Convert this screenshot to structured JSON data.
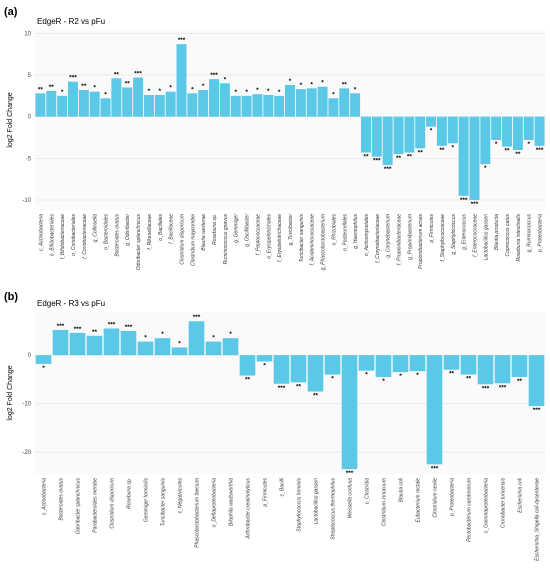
{
  "chart_data": [
    {
      "type": "bar",
      "panel": "(a)",
      "title": "EdgeR - R2 vs pFu",
      "y_label": "log2 Fold Change",
      "color": "#5bc8e8",
      "grid": true,
      "ylim": [
        -11.2,
        10.4
      ],
      "yticks": [
        -10,
        -5,
        0,
        5,
        10
      ],
      "categories": [
        "c_Actinobacteria",
        "o_Bifidobacteriales",
        "f_Bifidobacteriaceae",
        "o_Coriobacteriales",
        "f_Coriobacteriaceae",
        "g_Collinsella",
        "o_Bacteroidales",
        "Bacteroides ovatus",
        "g_Odoribacter",
        "Odoribacter splanchnicus",
        "f_Rikenellaceae",
        "o_Bacillales",
        "f_Bacillaceae",
        "Clostridium disporicum",
        "Clostridium maycombei",
        "Blautia wexlerae",
        "Roseburia sp.",
        "Ruminococcus gnavus",
        "g_Gemmiger",
        "g_Oscillibacter",
        "f_Peptococcaceae",
        "o_Erysipelotrichales",
        "f_Erysipelotrichaceae",
        "g_Turicibacter",
        "Turicibacter sanguinis",
        "f_Acidaminococcaceae",
        "g_Phascolarctobacterium",
        "o_Rhizobiales",
        "o_Pasteurellales",
        "g_Haemophilus",
        "o_Actinomycetales",
        "f_Corynebacteriaceae",
        "g_Corynebacterium",
        "f_Propionibacteriaceae",
        "g_Propionibacterium",
        "Propionibacterium acnes",
        "p_Firmicutes",
        "f_Staphylococcaceae",
        "g_Staphylococcus",
        "g_Enterococcus",
        "f_Enterococcaceae",
        "Lactobacillus gasseri",
        "Blautia producta",
        "Coprococcus catus",
        "Roseburia intestinalis",
        "g_Ruminococcus",
        "p_Proteobacteria"
      ],
      "values": [
        2.8,
        3.1,
        2.5,
        4.2,
        3.2,
        3.0,
        2.2,
        4.6,
        3.5,
        4.7,
        2.6,
        2.6,
        3.0,
        8.7,
        2.8,
        3.2,
        4.5,
        4.0,
        2.5,
        2.5,
        2.7,
        2.6,
        2.5,
        3.8,
        3.3,
        3.4,
        3.6,
        2.2,
        3.4,
        2.8,
        -4.3,
        -4.8,
        -5.8,
        -4.5,
        -4.3,
        -3.8,
        -1.2,
        -3.5,
        -3.2,
        -9.5,
        -10.0,
        -5.7,
        -2.8,
        -3.6,
        -4.0,
        -2.8,
        -3.5
      ],
      "significance": [
        "**",
        "**",
        "*",
        "***",
        "**",
        "*",
        "*",
        "**",
        "**",
        "***",
        "*",
        "*",
        "*",
        "***",
        "*",
        "*",
        "***",
        "*",
        "*",
        "*",
        "*",
        "*",
        "*",
        "*",
        "*",
        "*",
        "*",
        "*",
        "**",
        "*",
        "**",
        "***",
        "***",
        "**",
        "**",
        "**",
        "*",
        "**",
        "*",
        "***",
        "***",
        "*",
        "*",
        "**",
        "**",
        "*",
        "***"
      ]
    },
    {
      "type": "bar",
      "panel": "(b)",
      "title": "EdgeR - R3 vs pFu",
      "y_label": "log2 Fold Change",
      "color": "#5bc8e8",
      "grid": true,
      "ylim": [
        -24.5,
        8.9
      ],
      "yticks": [
        -20,
        -10,
        0
      ],
      "categories": [
        "c_Actinobacteria",
        "Bacteroides ovatus",
        "Odoribacter splanchnicus",
        "Parabacteroides merdae",
        "Clostridium disporicum",
        "Roseburia sp.",
        "Gemmiger formicilis",
        "Turicibacter sanguinis",
        "c_Negativicutes",
        "Phascolarctobacterium faecium",
        "o_Deltaproteobacteria",
        "Bilophila wadsworthia",
        "Arthrobacter creatinolyticus",
        "p_Firmicutes",
        "c_Bacilli",
        "Staphylococcus hominis",
        "Lactobacillus gasseri",
        "Streptococcus thermophilus",
        "Weissella confusa",
        "c_Clostridia",
        "Clostridium innocuum",
        "Blautia coli",
        "Eubacterium rectale",
        "Clostridium nexile",
        "p_Proteobacteria",
        "Pectobacterium carotovorum",
        "c_Gammaproteobacteria",
        "Cronobacter turicensis",
        "Escherichia coli",
        "Escherichia_Shigella coli-dysenteriae"
      ],
      "values": [
        -1.8,
        5.2,
        4.6,
        4.0,
        5.5,
        5.0,
        2.8,
        3.5,
        1.6,
        7.0,
        2.8,
        3.5,
        -4.2,
        -1.3,
        -5.9,
        -5.6,
        -7.5,
        -4.0,
        -23.5,
        -3.2,
        -4.5,
        -3.5,
        -3.3,
        -22.5,
        -3.0,
        -4.0,
        -6.0,
        -5.8,
        -4.5,
        -10.5
      ],
      "significance": [
        "*",
        "***",
        "***",
        "**",
        "***",
        "***",
        "*",
        "*",
        "*",
        "***",
        "*",
        "*",
        "**",
        "*",
        "***",
        "**",
        "**",
        "*",
        "***",
        "*",
        "*",
        "*",
        "*",
        "***",
        "**",
        "**",
        "***",
        "***",
        "**",
        "***"
      ]
    }
  ]
}
